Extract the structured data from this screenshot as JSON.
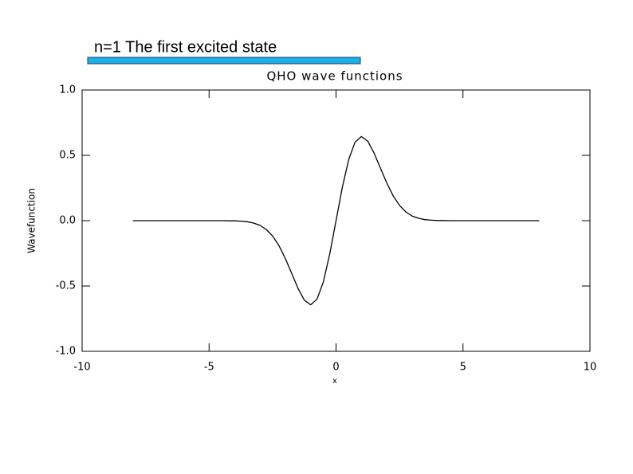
{
  "chart_data": {
    "type": "line",
    "annotation": "n=1 The first excited state",
    "title": "QHO wave functions",
    "xlabel": "x",
    "ylabel": "Wavefunction",
    "x": [
      -8,
      -4.5,
      -4.25,
      -4,
      -3.75,
      -3.5,
      -3.25,
      -3,
      -2.75,
      -2.5,
      -2.25,
      -2,
      -1.75,
      -1.5,
      -1.25,
      -1,
      -0.75,
      -0.5,
      -0.25,
      0,
      0.25,
      0.5,
      0.75,
      1,
      1.25,
      1.5,
      1.75,
      2,
      2.25,
      2.5,
      2.75,
      3,
      3.25,
      3.5,
      3.75,
      4,
      4.25,
      4.5,
      8
    ],
    "series": [
      {
        "color": "#000000",
        "values": [
          0,
          0,
          -0.001,
          -0.001,
          -0.004,
          -0.008,
          -0.018,
          -0.035,
          -0.067,
          -0.117,
          -0.19,
          -0.288,
          -0.402,
          -0.517,
          -0.608,
          -0.644,
          -0.601,
          -0.469,
          -0.257,
          0,
          0.257,
          0.469,
          0.601,
          0.644,
          0.608,
          0.517,
          0.402,
          0.288,
          0.19,
          0.117,
          0.067,
          0.035,
          0.018,
          0.008,
          0.004,
          0.001,
          0.001,
          0,
          0
        ]
      }
    ],
    "xlim": [
      -10,
      10
    ],
    "xticks": [
      -10,
      -5,
      0,
      5,
      10
    ],
    "ylim": [
      -1,
      1
    ],
    "yticks": [
      {
        "value": -1,
        "label": "-1.0"
      },
      {
        "value": -0.5,
        "label": "-0.5"
      },
      {
        "value": 0,
        "label": "0.0"
      },
      {
        "value": 0.5,
        "label": "0.5"
      },
      {
        "value": 1,
        "label": "1.0"
      }
    ],
    "annotation_color": "#1ab0e8"
  }
}
